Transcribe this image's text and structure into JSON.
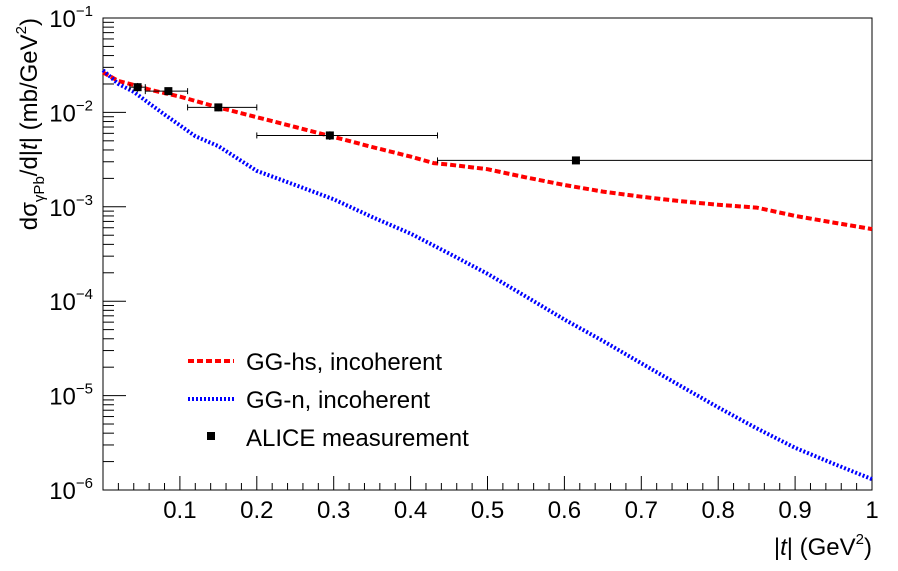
{
  "chart_data": {
    "type": "line",
    "xlabel_parts": [
      "|",
      "t",
      "| (GeV",
      "2",
      ")"
    ],
    "ylabel_parts": [
      "dσ",
      "γPb",
      "/d|",
      "t",
      "| (mb/GeV",
      "2",
      ")"
    ],
    "xlim": [
      0,
      1
    ],
    "ylim": [
      1e-06,
      0.1
    ],
    "yscale": "log",
    "grid": false,
    "legend_position": "bottom-left",
    "x_ticks": [
      0.1,
      0.2,
      0.3,
      0.4,
      0.5,
      0.6,
      0.7,
      0.8,
      0.9,
      1
    ],
    "x_tick_labels": [
      "0.1",
      "0.2",
      "0.3",
      "0.4",
      "0.5",
      "0.6",
      "0.7",
      "0.8",
      "0.9",
      "1"
    ],
    "y_ticks": [
      {
        "value": 0.1,
        "base": "10",
        "exp": "−1"
      },
      {
        "value": 0.01,
        "base": "10",
        "exp": "−2"
      },
      {
        "value": 0.001,
        "base": "10",
        "exp": "−3"
      },
      {
        "value": 0.0001,
        "base": "10",
        "exp": "−4"
      },
      {
        "value": 1e-05,
        "base": "10",
        "exp": "−5"
      },
      {
        "value": 1e-06,
        "base": "10",
        "exp": "−6"
      }
    ],
    "series": [
      {
        "name": "GG-hs, incoherent",
        "color": "#ff0000",
        "style": "dashed",
        "x": [
          0.0,
          0.02,
          0.04,
          0.06,
          0.08,
          0.1,
          0.15,
          0.2,
          0.25,
          0.3,
          0.35,
          0.4,
          0.43,
          0.45,
          0.5,
          0.55,
          0.6,
          0.65,
          0.7,
          0.75,
          0.8,
          0.85,
          0.9,
          0.95,
          1.0
        ],
        "y": [
          0.0265,
          0.0215,
          0.0195,
          0.0175,
          0.016,
          0.0147,
          0.0113,
          0.0089,
          0.007,
          0.0055,
          0.0043,
          0.0034,
          0.0029,
          0.0028,
          0.0025,
          0.00205,
          0.0017,
          0.00145,
          0.00128,
          0.00115,
          0.00105,
          0.00098,
          0.0008,
          0.00068,
          0.00058
        ]
      },
      {
        "name": "GG-n, incoherent",
        "color": "#0000ff",
        "style": "dotted",
        "x": [
          0.0,
          0.02,
          0.04,
          0.06,
          0.08,
          0.1,
          0.12,
          0.15,
          0.2,
          0.25,
          0.3,
          0.35,
          0.4,
          0.45,
          0.5,
          0.55,
          0.6,
          0.65,
          0.7,
          0.75,
          0.8,
          0.85,
          0.9,
          0.95,
          1.0
        ],
        "y": [
          0.028,
          0.02,
          0.0165,
          0.0125,
          0.0095,
          0.0073,
          0.0056,
          0.0044,
          0.0024,
          0.0017,
          0.0012,
          0.00078,
          0.00052,
          0.00032,
          0.000195,
          0.000112,
          6.4e-05,
          3.8e-05,
          2.2e-05,
          1.28e-05,
          7.5e-06,
          4.5e-06,
          2.8e-06,
          1.9e-06,
          1.3e-06
        ]
      }
    ],
    "measurement": {
      "name": "ALICE measurement",
      "color": "#000000",
      "points": [
        {
          "x": 0.045,
          "y": 0.0185,
          "xerr": [
            0.035,
            0.055
          ],
          "yerr": [
            0.0165,
            0.0205
          ]
        },
        {
          "x": 0.085,
          "y": 0.0168,
          "xerr": [
            0.055,
            0.11
          ],
          "yerr": [
            0.0158,
            0.0178
          ]
        },
        {
          "x": 0.15,
          "y": 0.0113,
          "xerr": [
            0.11,
            0.2
          ],
          "yerr": [
            0.0103,
            0.0123
          ]
        },
        {
          "x": 0.295,
          "y": 0.0057,
          "xerr": [
            0.2,
            0.435
          ],
          "yerr": [
            0.0051,
            0.0063
          ]
        },
        {
          "x": 0.615,
          "y": 0.0031,
          "xerr": [
            0.435,
            1.0
          ],
          "yerr": [
            0.00285,
            0.00335
          ]
        }
      ]
    }
  }
}
